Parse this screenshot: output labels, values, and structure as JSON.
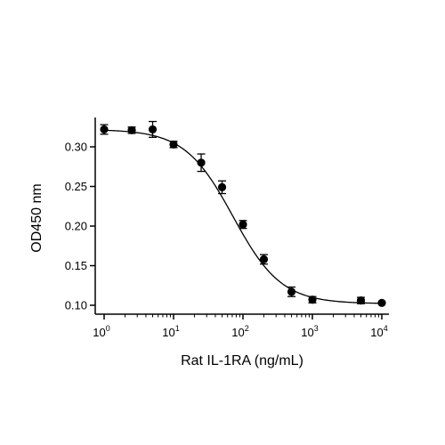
{
  "chart_data": {
    "type": "scatter",
    "title": "",
    "xlabel": "Rat IL-1RA (ng/mL)",
    "ylabel": "OD450 nm",
    "xscale": "log",
    "xlim": [
      1,
      10000
    ],
    "ylim": [
      0.095,
      0.33
    ],
    "xtick_labels": [
      {
        "value": 1,
        "base": "10",
        "exp": "0"
      },
      {
        "value": 10,
        "base": "10",
        "exp": "1"
      },
      {
        "value": 100,
        "base": "10",
        "exp": "2"
      },
      {
        "value": 1000,
        "base": "10",
        "exp": "3"
      },
      {
        "value": 10000,
        "base": "10",
        "exp": "4"
      }
    ],
    "yticks": [
      {
        "value": 0.1,
        "label": "0.10"
      },
      {
        "value": 0.15,
        "label": "0.15"
      },
      {
        "value": 0.2,
        "label": "0.20"
      },
      {
        "value": 0.25,
        "label": "0.25"
      },
      {
        "value": 0.3,
        "label": "0.30"
      }
    ],
    "grid": false,
    "legend": "none",
    "series": [
      {
        "points": [
          {
            "x": 1,
            "y": 0.322,
            "err": 0.006
          },
          {
            "x": 2.5,
            "y": 0.321,
            "err": 0.004
          },
          {
            "x": 5,
            "y": 0.322,
            "err": 0.01
          },
          {
            "x": 10,
            "y": 0.303,
            "err": 0.004
          },
          {
            "x": 25,
            "y": 0.28,
            "err": 0.011
          },
          {
            "x": 50,
            "y": 0.249,
            "err": 0.008
          },
          {
            "x": 100,
            "y": 0.202,
            "err": 0.005
          },
          {
            "x": 200,
            "y": 0.158,
            "err": 0.006
          },
          {
            "x": 500,
            "y": 0.117,
            "err": 0.006
          },
          {
            "x": 1000,
            "y": 0.107,
            "err": 0.004
          },
          {
            "x": 5000,
            "y": 0.106,
            "err": 0.004
          },
          {
            "x": 10000,
            "y": 0.103,
            "err": 0.001
          }
        ]
      }
    ],
    "fit": {
      "model": "4PL",
      "top": 0.322,
      "bottom": 0.102,
      "ec50": 72,
      "hill": 1.25
    },
    "colors": {
      "marker": "#000000",
      "line": "#000000"
    }
  }
}
